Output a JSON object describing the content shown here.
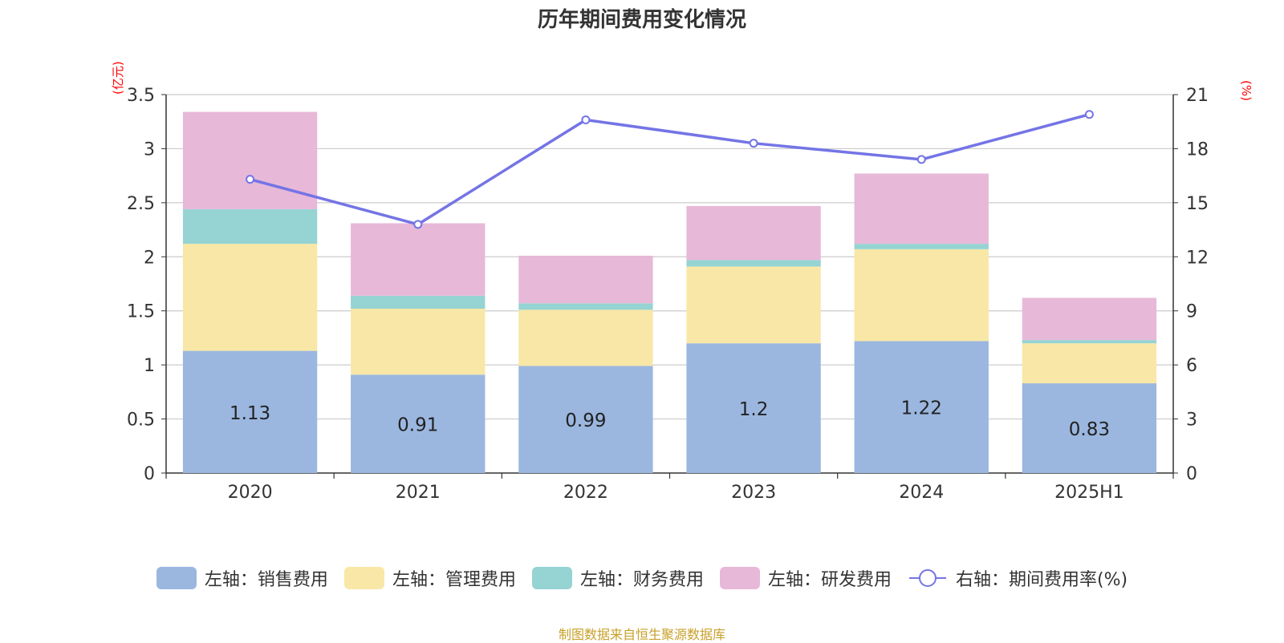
{
  "chart_data": {
    "type": "bar",
    "title": "历年期间费用变化情况",
    "categories": [
      "2020",
      "2021",
      "2022",
      "2023",
      "2024",
      "2025H1"
    ],
    "left_axis": {
      "unit": "(亿元)",
      "ylim": [
        0,
        3.5
      ],
      "ticks": [
        "0",
        "0.5",
        "1",
        "1.5",
        "2",
        "2.5",
        "3",
        "3.5"
      ]
    },
    "right_axis": {
      "unit": "(%)",
      "ylim": [
        0,
        21
      ],
      "ticks": [
        "0",
        "3",
        "6",
        "9",
        "12",
        "15",
        "18",
        "21"
      ]
    },
    "grid": true,
    "legend_position": "bottom",
    "stacked": true,
    "series": [
      {
        "name": "左轴：销售费用",
        "axis": "left",
        "color": "#9bb7e0",
        "values": [
          1.13,
          0.91,
          0.99,
          1.2,
          1.22,
          0.83
        ],
        "show_labels": true
      },
      {
        "name": "左轴：管理费用",
        "axis": "left",
        "color": "#f8e7a6",
        "values": [
          0.99,
          0.61,
          0.52,
          0.71,
          0.85,
          0.37
        ]
      },
      {
        "name": "左轴：财务费用",
        "axis": "left",
        "color": "#96d3d3",
        "values": [
          0.32,
          0.12,
          0.06,
          0.06,
          0.05,
          0.03
        ]
      },
      {
        "name": "左轴：研发费用",
        "axis": "left",
        "color": "#e7b8d8",
        "values": [
          0.9,
          0.67,
          0.44,
          0.5,
          0.65,
          0.39
        ]
      },
      {
        "name": "右轴：期间费用率(%)",
        "axis": "right",
        "type": "line",
        "color": "#7474e6",
        "values": [
          16.3,
          13.8,
          19.6,
          18.3,
          17.4,
          19.9
        ]
      }
    ]
  },
  "source_note": "制图数据来自恒生聚源数据库"
}
